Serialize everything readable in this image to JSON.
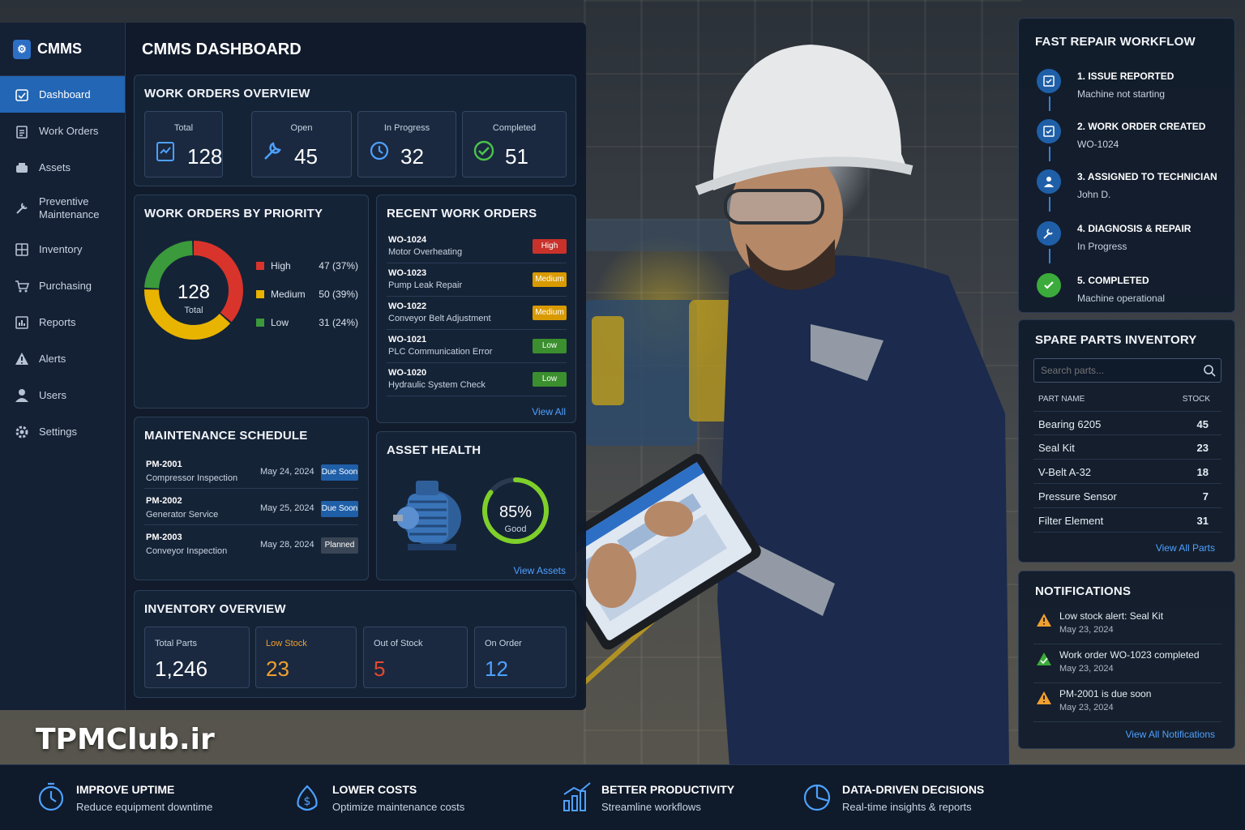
{
  "sidebar": {
    "brand": "CMMS",
    "items": [
      {
        "label": "Dashboard"
      },
      {
        "label": "Work Orders"
      },
      {
        "label": "Assets"
      },
      {
        "label": "Preventive Maintenance"
      },
      {
        "label": "Inventory"
      },
      {
        "label": "Purchasing"
      },
      {
        "label": "Reports"
      },
      {
        "label": "Alerts"
      },
      {
        "label": "Users"
      },
      {
        "label": "Settings"
      }
    ]
  },
  "header": {
    "title": "CMMS DASHBOARD"
  },
  "overview": {
    "title": "WORK ORDERS OVERVIEW",
    "stats": [
      {
        "label": "Total",
        "value": "128",
        "icon": "clipboard-icon"
      },
      {
        "label": "Open",
        "value": "45",
        "icon": "wrench-icon"
      },
      {
        "label": "In Progress",
        "value": "32",
        "icon": "clock-icon"
      },
      {
        "label": "Completed",
        "value": "51",
        "icon": "check-circle-icon"
      }
    ]
  },
  "priority": {
    "title": "WORK ORDERS BY PRIORITY",
    "total_value": "128",
    "total_label": "Total",
    "rows": [
      {
        "label": "High",
        "value": "47 (37%)",
        "color": "#d9342b"
      },
      {
        "label": "Medium",
        "value": "50 (39%)",
        "color": "#e8b400"
      },
      {
        "label": "Low",
        "value": "31 (24%)",
        "color": "#3b9a3b"
      }
    ]
  },
  "chart_data": {
    "type": "pie",
    "categories": [
      "High",
      "Medium",
      "Low"
    ],
    "values": [
      47,
      50,
      31
    ],
    "title": "WORK ORDERS BY PRIORITY"
  },
  "recent": {
    "title": "RECENT WORK ORDERS",
    "view_all": "View All",
    "rows": [
      {
        "id": "WO-1024",
        "name": "Motor Overheating",
        "priority": "High",
        "color": "#c8322a"
      },
      {
        "id": "WO-1023",
        "name": "Pump Leak Repair",
        "priority": "Medium",
        "color": "#d99a00"
      },
      {
        "id": "WO-1022",
        "name": "Conveyor Belt Adjustment",
        "priority": "Medium",
        "color": "#d99a00"
      },
      {
        "id": "WO-1021",
        "name": "PLC Communication Error",
        "priority": "Low",
        "color": "#3b8f2e"
      },
      {
        "id": "WO-1020",
        "name": "Hydraulic System Check",
        "priority": "Low",
        "color": "#3b8f2e"
      }
    ]
  },
  "schedule": {
    "title": "MAINTENANCE SCHEDULE",
    "rows": [
      {
        "id": "PM-2001",
        "name": "Compressor Inspection",
        "date": "May 24, 2024",
        "status": "Due Soon",
        "color": "#1f5fa8"
      },
      {
        "id": "PM-2002",
        "name": "Generator Service",
        "date": "May 25, 2024",
        "status": "Due Soon",
        "color": "#1f5fa8"
      },
      {
        "id": "PM-2003",
        "name": "Conveyor Inspection",
        "date": "May 28, 2024",
        "status": "Planned",
        "color": "#3a4555"
      }
    ]
  },
  "asset_health": {
    "title": "ASSET HEALTH",
    "percent": "85%",
    "percent_value": 0.85,
    "status": "Good",
    "view": "View Assets"
  },
  "inventory_overview": {
    "title": "INVENTORY OVERVIEW",
    "cards": [
      {
        "label": "Total Parts",
        "value": "1,246",
        "label_color": "#c9d4e2",
        "value_color": "#ffffff"
      },
      {
        "label": "Low Stock",
        "value": "23",
        "label_color": "#f0a030",
        "value_color": "#f0a030"
      },
      {
        "label": "Out of Stock",
        "value": "5",
        "label_color": "#c9d4e2",
        "value_color": "#e5482f"
      },
      {
        "label": "On Order",
        "value": "12",
        "label_color": "#c9d4e2",
        "value_color": "#4ea1ff"
      }
    ]
  },
  "workflow": {
    "title": "FAST REPAIR WORKFLOW",
    "steps": [
      {
        "title": "1. ISSUE REPORTED",
        "sub": "Machine not starting",
        "icon": "checklist-icon"
      },
      {
        "title": "2. WORK ORDER CREATED",
        "sub": "WO-1024",
        "icon": "checklist-icon"
      },
      {
        "title": "3. ASSIGNED TO TECHNICIAN",
        "sub": "John D.",
        "icon": "user-icon"
      },
      {
        "title": "4. DIAGNOSIS & REPAIR",
        "sub": "In Progress",
        "icon": "wrench-icon"
      },
      {
        "title": "5. COMPLETED",
        "sub": "Machine operational",
        "icon": "check-icon"
      }
    ]
  },
  "spare_parts": {
    "title": "SPARE PARTS INVENTORY",
    "search_placeholder": "Search parts...",
    "col_name": "PART NAME",
    "col_stock": "STOCK",
    "rows": [
      {
        "name": "Bearing 6205",
        "stock": "45"
      },
      {
        "name": "Seal Kit",
        "stock": "23"
      },
      {
        "name": "V-Belt A-32",
        "stock": "18"
      },
      {
        "name": "Pressure Sensor",
        "stock": "7"
      },
      {
        "name": "Filter Element",
        "stock": "31"
      }
    ],
    "view_all": "View All Parts"
  },
  "notifications": {
    "title": "NOTIFICATIONS",
    "items": [
      {
        "text": "Low stock alert: Seal Kit",
        "date": "May 23, 2024",
        "color": "#f0a030"
      },
      {
        "text": "Work order WO-1023 completed",
        "date": "May 23, 2024",
        "color": "#3bab3b"
      },
      {
        "text": "PM-2001 is due soon",
        "date": "May 23, 2024",
        "color": "#f0a030"
      }
    ],
    "view_all": "View All Notifications"
  },
  "benefits": [
    {
      "title": "IMPROVE UPTIME",
      "sub": "Reduce equipment downtime",
      "icon": "stopwatch-icon"
    },
    {
      "title": "LOWER COSTS",
      "sub": "Optimize maintenance costs",
      "icon": "money-icon"
    },
    {
      "title": "BETTER PRODUCTIVITY",
      "sub": "Streamline workflows",
      "icon": "growth-chart-icon"
    },
    {
      "title": "DATA-DRIVEN DECISIONS",
      "sub": "Real-time insights & reports",
      "icon": "pie-chart-icon"
    }
  ],
  "watermark": "TPMClub.ir"
}
